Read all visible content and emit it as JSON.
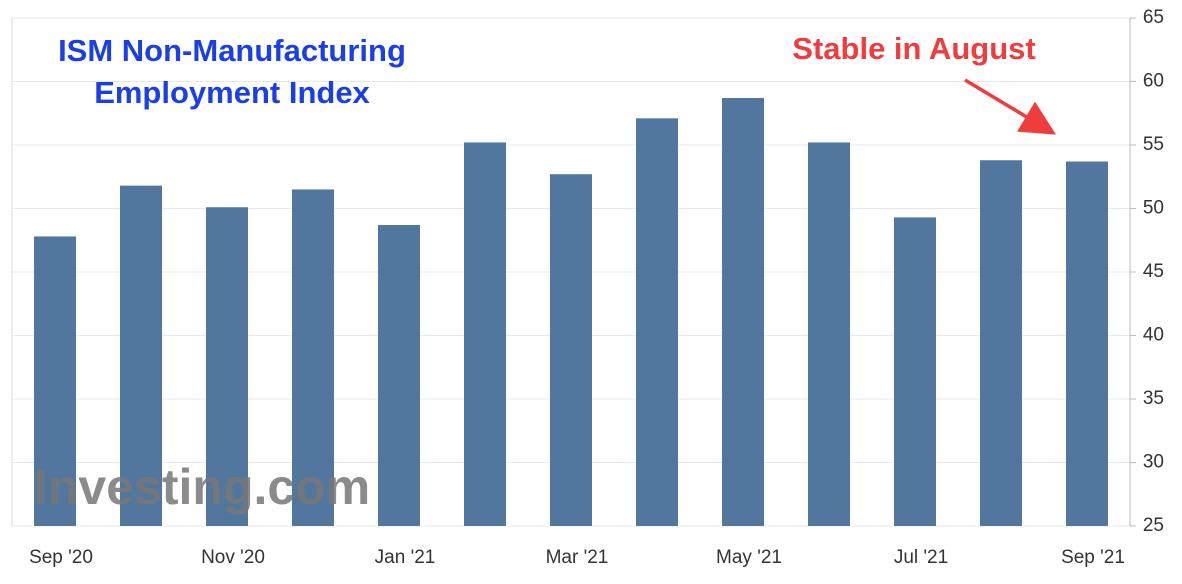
{
  "chart_data": {
    "type": "bar",
    "title": [
      "ISM Non-Manufacturing",
      "Employment Index"
    ],
    "annotation": "Stable in August",
    "watermark": "Investing.com",
    "categories": [
      "Sep '20",
      null,
      "Nov '20",
      null,
      "Jan '21",
      null,
      "Mar '21",
      null,
      "May '21",
      null,
      "Jul '21",
      null,
      "Sep '21"
    ],
    "values": [
      47.8,
      51.8,
      50.1,
      51.5,
      48.7,
      55.2,
      52.7,
      57.1,
      58.7,
      55.2,
      49.3,
      53.8,
      53.7
    ],
    "color": "#51779f",
    "ylim": [
      25,
      65
    ],
    "yticks": [
      25,
      30,
      35,
      40,
      45,
      50,
      55,
      60,
      65
    ],
    "grid": true
  }
}
